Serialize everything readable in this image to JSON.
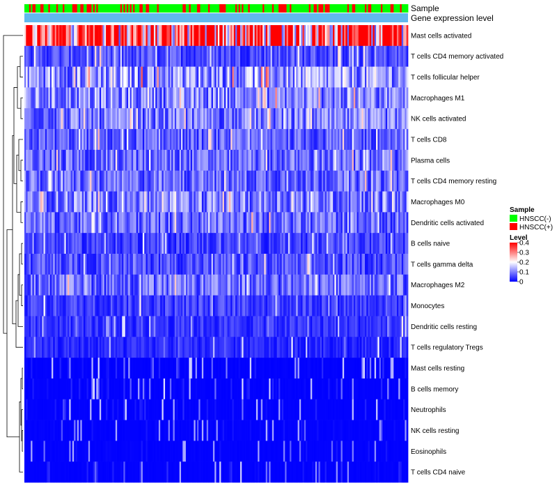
{
  "chart_data": {
    "type": "heatmap",
    "title": "",
    "annotation_tracks": [
      "Sample",
      "Gene expression level"
    ],
    "rows": [
      "Mast cells activated",
      "T cells CD4 memory activated",
      "T cells follicular helper",
      "Macrophages M1",
      "NK cells activated",
      "T cells CD8",
      "Plasma cells",
      "T cells CD4 memory resting",
      "Macrophages M0",
      "Dendritic cells activated",
      "B cells naive",
      "T cells gamma delta",
      "Macrophages M2",
      "Monocytes",
      "Dendritic cells resting",
      "T cells regulatory  Tregs",
      "Mast cells resting",
      "B cells memory",
      "Neutrophils",
      "NK cells resting",
      "Eosinophils",
      "T cells CD4 naive"
    ],
    "row_mean_level": [
      0.33,
      0.06,
      0.12,
      0.1,
      0.09,
      0.07,
      0.08,
      0.08,
      0.1,
      0.08,
      0.05,
      0.06,
      0.08,
      0.05,
      0.04,
      0.03,
      0.02,
      0.02,
      0.02,
      0.01,
      0.01,
      0.02
    ],
    "n_samples": 240,
    "color_scale": {
      "min": 0,
      "max": 0.4,
      "low_color": "#0000ff",
      "mid_color": "#ffffff",
      "high_color": "#ff0000"
    },
    "legend": {
      "sample": {
        "title": "Sample",
        "items": [
          {
            "label": "HNSCC(-)",
            "color": "#00ff00"
          },
          {
            "label": "HNSCC(+)",
            "color": "#ff0000"
          }
        ]
      },
      "level": {
        "title": "Level",
        "ticks": [
          "0.4",
          "0.3",
          "0.2",
          "0.1",
          "0"
        ],
        "values": [
          0.4,
          0.3,
          0.2,
          0.1,
          0
        ]
      }
    },
    "gene_expression_color": "#61b8ee"
  }
}
